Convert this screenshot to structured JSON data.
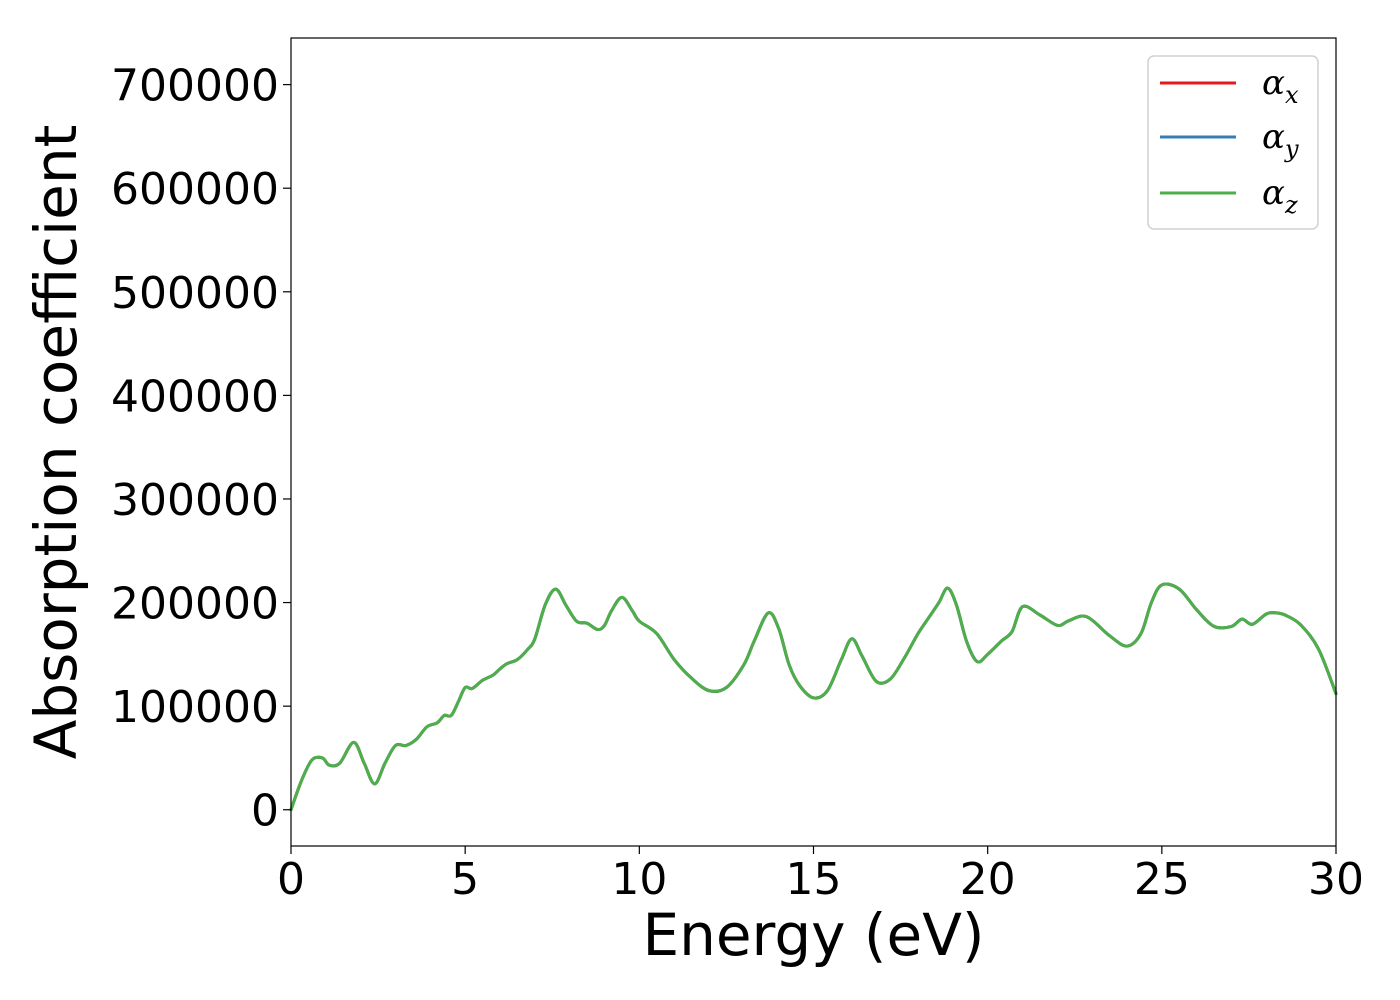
{
  "chart_data": {
    "type": "line",
    "xlabel": "Energy (eV)",
    "ylabel": "Absorption coefficient",
    "xlim": [
      0,
      30
    ],
    "ylim": [
      -35000,
      745000
    ],
    "xticks": [
      0,
      5,
      10,
      15,
      20,
      25,
      30
    ],
    "xtick_labels": [
      "0",
      "5",
      "10",
      "15",
      "20",
      "25",
      "30"
    ],
    "yticks": [
      0,
      100000,
      200000,
      300000,
      400000,
      500000,
      600000,
      700000
    ],
    "ytick_labels": [
      "0",
      "100000",
      "200000",
      "300000",
      "400000",
      "500000",
      "600000",
      "700000"
    ],
    "grid": false,
    "legend_position": "top-right",
    "x": [
      0,
      0.3,
      0.6,
      0.9,
      1.1,
      1.4,
      1.8,
      2.1,
      2.4,
      2.7,
      3.0,
      3.3,
      3.6,
      3.9,
      4.2,
      4.4,
      4.6,
      4.8,
      5.0,
      5.2,
      5.5,
      5.8,
      6.0,
      6.2,
      6.5,
      6.8,
      7.0,
      7.3,
      7.6,
      7.9,
      8.2,
      8.5,
      8.8,
      9.0,
      9.2,
      9.5,
      9.8,
      10.0,
      10.5,
      11.0,
      11.5,
      12.0,
      12.5,
      13.0,
      13.3,
      13.7,
      14.0,
      14.3,
      14.6,
      15.0,
      15.4,
      15.8,
      16.1,
      16.4,
      16.8,
      17.2,
      17.6,
      18.0,
      18.3,
      18.6,
      18.85,
      19.1,
      19.4,
      19.7,
      20.0,
      20.4,
      20.7,
      21.0,
      21.5,
      22.0,
      22.3,
      22.7,
      23.0,
      23.5,
      24.0,
      24.4,
      24.7,
      25.0,
      25.5,
      26.0,
      26.5,
      27.0,
      27.3,
      27.6,
      28.0,
      28.3,
      28.6,
      29.0,
      29.5,
      30.0
    ],
    "series": [
      {
        "name": "α_x",
        "color": "#e41a1c",
        "values": [
          0,
          28000,
          48000,
          50000,
          43000,
          45000,
          65000,
          45000,
          25000,
          45000,
          62000,
          62000,
          68000,
          80000,
          84000,
          91000,
          91000,
          104000,
          118000,
          117000,
          125000,
          130000,
          136000,
          141000,
          145000,
          155000,
          165000,
          198000,
          213000,
          197000,
          182000,
          180000,
          174000,
          178000,
          192000,
          205000,
          192000,
          182000,
          170000,
          145000,
          127000,
          115000,
          118000,
          140000,
          163000,
          190000,
          175000,
          140000,
          120000,
          108000,
          115000,
          145000,
          165000,
          148000,
          124000,
          126000,
          146000,
          170000,
          185000,
          200000,
          214000,
          198000,
          162000,
          143000,
          150000,
          163000,
          172000,
          196000,
          188000,
          178000,
          182000,
          187000,
          183000,
          168000,
          158000,
          170000,
          200000,
          217000,
          213000,
          193000,
          177000,
          177000,
          184000,
          179000,
          189000,
          190000,
          187000,
          178000,
          155000,
          112000
        ]
      },
      {
        "name": "α_y",
        "color": "#377eb8",
        "values": [
          0,
          28000,
          48000,
          50000,
          43000,
          45000,
          65000,
          45000,
          25000,
          45000,
          62000,
          62000,
          68000,
          80000,
          84000,
          91000,
          91000,
          104000,
          118000,
          117000,
          125000,
          130000,
          136000,
          141000,
          145000,
          155000,
          165000,
          198000,
          213000,
          197000,
          182000,
          180000,
          174000,
          178000,
          192000,
          205000,
          192000,
          182000,
          170000,
          145000,
          127000,
          115000,
          118000,
          140000,
          163000,
          190000,
          175000,
          140000,
          120000,
          108000,
          115000,
          145000,
          165000,
          148000,
          124000,
          126000,
          146000,
          170000,
          185000,
          200000,
          214000,
          198000,
          162000,
          143000,
          150000,
          163000,
          172000,
          196000,
          188000,
          178000,
          182000,
          187000,
          183000,
          168000,
          158000,
          170000,
          200000,
          217000,
          213000,
          193000,
          177000,
          177000,
          184000,
          179000,
          189000,
          190000,
          187000,
          178000,
          155000,
          112000
        ]
      },
      {
        "name": "α_z",
        "color": "#4daf4a",
        "values": [
          0,
          28000,
          48000,
          50000,
          43000,
          45000,
          65000,
          45000,
          25000,
          45000,
          62000,
          62000,
          68000,
          80000,
          84000,
          91000,
          91000,
          104000,
          118000,
          117000,
          125000,
          130000,
          136000,
          141000,
          145000,
          155000,
          165000,
          198000,
          213000,
          197000,
          182000,
          180000,
          174000,
          178000,
          192000,
          205000,
          192000,
          182000,
          170000,
          145000,
          127000,
          115000,
          118000,
          140000,
          163000,
          190000,
          175000,
          140000,
          120000,
          108000,
          115000,
          145000,
          165000,
          148000,
          124000,
          126000,
          146000,
          170000,
          185000,
          200000,
          214000,
          198000,
          162000,
          143000,
          150000,
          163000,
          172000,
          196000,
          188000,
          178000,
          182000,
          187000,
          183000,
          168000,
          158000,
          170000,
          200000,
          217000,
          213000,
          193000,
          177000,
          177000,
          184000,
          179000,
          189000,
          190000,
          187000,
          178000,
          155000,
          112000
        ]
      }
    ],
    "legend": [
      {
        "symbol": "α",
        "subscript": "x",
        "color": "#e41a1c"
      },
      {
        "symbol": "α",
        "subscript": "y",
        "color": "#377eb8"
      },
      {
        "symbol": "α",
        "subscript": "z",
        "color": "#4daf4a"
      }
    ]
  }
}
